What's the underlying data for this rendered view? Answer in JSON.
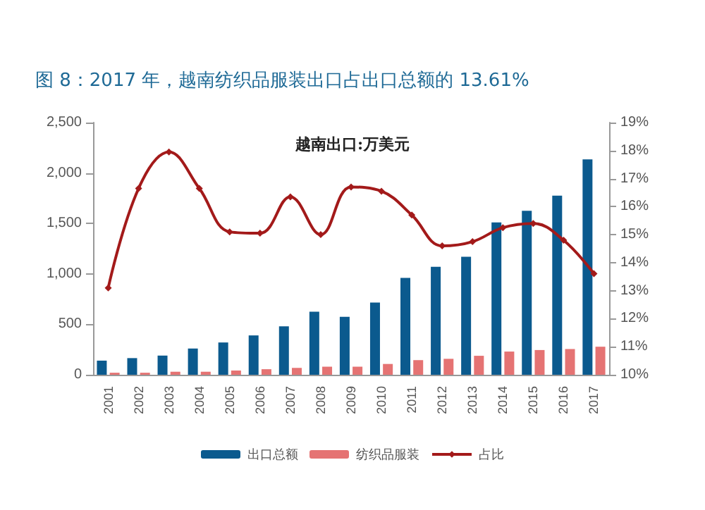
{
  "chart_data": {
    "type": "bar",
    "title": "图 8：2017 年，越南纺织品服装出口占出口总额的 13.61%",
    "subtitle": "越南出口:万美元",
    "categories": [
      "2001",
      "2002",
      "2003",
      "2004",
      "2005",
      "2006",
      "2007",
      "2008",
      "2009",
      "2010",
      "2011",
      "2012",
      "2013",
      "2014",
      "2015",
      "2016",
      "2017"
    ],
    "series": [
      {
        "name": "出口总额",
        "color": "#0b5a8e",
        "values": [
          140,
          165,
          190,
          260,
          320,
          390,
          480,
          625,
          575,
          715,
          960,
          1070,
          1170,
          1510,
          1625,
          1775,
          2135
        ]
      },
      {
        "name": "纺织品服装",
        "color": "#e57373",
        "values": [
          20,
          20,
          30,
          30,
          42,
          55,
          68,
          80,
          80,
          107,
          145,
          158,
          188,
          230,
          245,
          255,
          278
        ]
      },
      {
        "name": "占比",
        "type": "line",
        "axis": "y2",
        "color": "#a31a1a",
        "values": [
          13.1,
          16.65,
          17.95,
          16.65,
          15.1,
          15.05,
          16.35,
          15.0,
          16.7,
          16.55,
          15.7,
          14.6,
          14.75,
          15.25,
          15.4,
          14.8,
          13.61
        ]
      }
    ],
    "ylim": [
      0,
      2500
    ],
    "yticks": [
      0,
      500,
      {
        "value": 1000,
        "label": "1,000"
      },
      {
        "value": 1500,
        "label": "1,500"
      },
      {
        "value": 2000,
        "label": "2,000"
      },
      {
        "value": 2500,
        "label": "2,500"
      }
    ],
    "y2lim": [
      10,
      19
    ],
    "y2ticks": [
      {
        "value": 10,
        "label": "10%"
      },
      {
        "value": 11,
        "label": "11%"
      },
      {
        "value": 12,
        "label": "12%"
      },
      {
        "value": 13,
        "label": "13%"
      },
      {
        "value": 14,
        "label": "14%"
      },
      {
        "value": 15,
        "label": "15%"
      },
      {
        "value": 16,
        "label": "16%"
      },
      {
        "value": 17,
        "label": "17%"
      },
      {
        "value": 18,
        "label": "18%"
      },
      {
        "value": 19,
        "label": "19%"
      }
    ],
    "grid": false,
    "legend": "bottom",
    "marker": "diamond"
  }
}
